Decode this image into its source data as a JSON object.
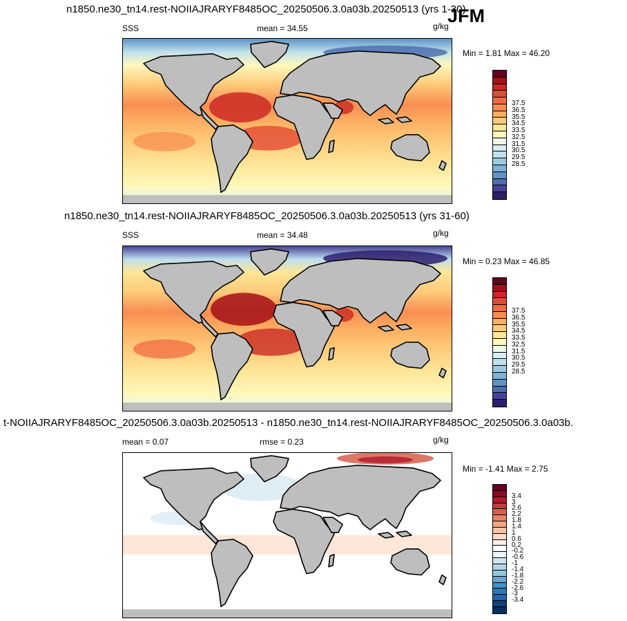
{
  "season": "JFM",
  "panels": [
    {
      "title": "n1850.ne30_tn14.rest-NOIIAJRARYF8485OC_20250506.3.0a03b.20250513 (yrs 1-30)",
      "left_label": "SSS",
      "center_label": "mean =  34.55",
      "units": "g/kg",
      "minmax": "Min =   1.81 Max =  46.20"
    },
    {
      "title": "n1850.ne30_tn14.rest-NOIIAJRARYF8485OC_20250506.3.0a03b.20250513 (yrs 31-60)",
      "left_label": "SSS",
      "center_label": "mean =  34.48",
      "units": "g/kg",
      "minmax": "Min =   0.23 Max =  46.85"
    },
    {
      "title": "t-NOIIAJRARYF8485OC_20250506.3.0a03b.20250513 - n1850.ne30_tn14.rest-NOIIAJRARYF8485OC_20250506.3.0a03b.",
      "left_label": "mean =   0.07",
      "center_label": "rmse =   0.23",
      "units": "g/kg",
      "minmax": "Min =  -1.41 Max =   2.75"
    }
  ],
  "chart_data": [
    {
      "type": "heatmap",
      "title": "n1850.ne30_tn14.rest-NOIIAJRARYF8485OC_20250506.3.0a03b.20250513 (yrs 1-30)",
      "variable": "SSS",
      "units": "g/kg",
      "mean": 34.55,
      "min": 1.81,
      "max": 46.2,
      "colorbar_levels": [
        "37.5",
        "36.5",
        "35.5",
        "34.5",
        "33.5",
        "32.5",
        "31.5",
        "30.5",
        "29.5",
        "28.5"
      ],
      "colorbar_colors": [
        "#67001f",
        "#a50f15",
        "#cb2a24",
        "#e34a33",
        "#f26b43",
        "#f88d52",
        "#fcae62",
        "#fdca79",
        "#fee597",
        "#fff8bc",
        "#eef7e8",
        "#d9eef3",
        "#bfe0ec",
        "#9ecae1",
        "#7fb2d6",
        "#5f93c4",
        "#4d6eb0",
        "#474298",
        "#2d1e6e"
      ]
    },
    {
      "type": "heatmap",
      "title": "n1850.ne30_tn14.rest-NOIIAJRARYF8485OC_20250506.3.0a03b.20250513 (yrs 31-60)",
      "variable": "SSS",
      "units": "g/kg",
      "mean": 34.48,
      "min": 0.23,
      "max": 46.85,
      "colorbar_levels": [
        "37.5",
        "36.5",
        "35.5",
        "34.5",
        "33.5",
        "32.5",
        "31.5",
        "30.5",
        "29.5",
        "28.5"
      ],
      "colorbar_colors": [
        "#67001f",
        "#a50f15",
        "#cb2a24",
        "#e34a33",
        "#f26b43",
        "#f88d52",
        "#fcae62",
        "#fdca79",
        "#fee597",
        "#fff8bc",
        "#eef7e8",
        "#d9eef3",
        "#bfe0ec",
        "#9ecae1",
        "#7fb2d6",
        "#5f93c4",
        "#4d6eb0",
        "#474298",
        "#2d1e6e"
      ]
    },
    {
      "type": "heatmap",
      "title": "t-NOIIAJRARYF8485OC_20250506.3.0a03b.20250513 - n1850.ne30_tn14.rest-NOIIAJRARYF8485OC_20250506.3.0a03b.",
      "units": "g/kg",
      "mean": 0.07,
      "rmse": 0.23,
      "min": -1.41,
      "max": 2.75,
      "colorbar_levels": [
        "3.4",
        "3",
        "2.6",
        "2.2",
        "1.8",
        "1.4",
        "1",
        "0.6",
        "0.2",
        "-0.2",
        "-0.6",
        "-1",
        "-1.4",
        "-1.8",
        "-2.2",
        "-2.6",
        "-3",
        "-3.4"
      ],
      "colorbar_colors": [
        "#67001f",
        "#8c0a22",
        "#b2182b",
        "#c43c3c",
        "#d6604d",
        "#e58368",
        "#f4a582",
        "#f8c4a8",
        "#fddbc7",
        "#fbefe8",
        "#ffffff",
        "#eef4f9",
        "#d1e5f0",
        "#b3d4e8",
        "#92c5de",
        "#6aa7cf",
        "#4393c3",
        "#2f78b4",
        "#2166ac",
        "#163e73",
        "#053061"
      ]
    }
  ]
}
